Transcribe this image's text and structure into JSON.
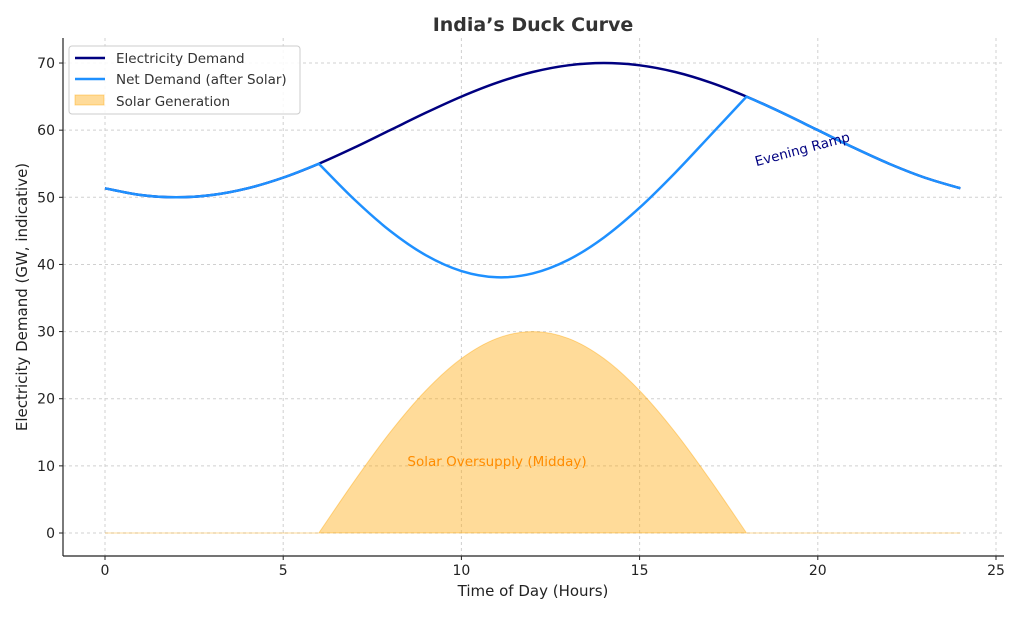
{
  "chart_data": {
    "type": "line",
    "title": "India’s Duck Curve",
    "xlabel": "Time of Day (Hours)",
    "ylabel": "Electricity Demand (GW, indicative)",
    "xlim": [
      -1.2,
      25.3
    ],
    "ylim": [
      -3.5,
      73.5
    ],
    "xticks": [
      0,
      5,
      10,
      15,
      20,
      25
    ],
    "yticks": [
      0,
      10,
      20,
      30,
      40,
      50,
      60,
      70
    ],
    "grid": true,
    "legend_position": "top-left",
    "x": [
      0,
      1,
      2,
      3,
      4,
      5,
      6,
      7,
      8,
      9,
      10,
      11,
      12,
      13,
      14,
      15,
      16,
      17,
      18,
      19,
      20,
      21,
      22,
      23,
      24
    ],
    "series": [
      {
        "name": "Electricity Demand",
        "type": "line",
        "color": "#000080",
        "values": [
          51.34,
          50.34,
          50,
          50.34,
          51.34,
          52.93,
          55,
          57.41,
          60,
          62.59,
          65,
          67.07,
          68.66,
          69.66,
          70,
          69.66,
          68.66,
          67.07,
          65,
          62.59,
          60,
          57.41,
          55,
          52.93,
          51.34
        ]
      },
      {
        "name": "Net Demand (after Solar)",
        "type": "line",
        "color": "#1E90FF",
        "values": [
          51.34,
          50.34,
          50,
          50.34,
          51.34,
          52.93,
          55,
          49.65,
          45,
          41.38,
          39.02,
          38.09,
          38.66,
          40.68,
          44.02,
          48.45,
          53.66,
          59.31,
          65,
          62.59,
          60,
          57.41,
          55,
          52.93,
          51.34
        ]
      },
      {
        "name": "Solar Generation",
        "type": "area",
        "color": "#FFA500",
        "values": [
          0,
          0,
          0,
          0,
          0,
          0,
          0,
          7.76,
          15,
          21.21,
          25.98,
          28.98,
          30,
          28.98,
          25.98,
          21.21,
          15,
          7.76,
          0,
          0,
          0,
          0,
          0,
          0,
          0
        ]
      }
    ],
    "annotations": [
      {
        "text": "Evening Ramp",
        "x": 19.6,
        "y": 56.5,
        "color": "#000080",
        "rotation": -15
      },
      {
        "text": "Solar Oversupply (Midday)",
        "x": 11,
        "y": 10,
        "color": "#FF8C00"
      }
    ]
  }
}
